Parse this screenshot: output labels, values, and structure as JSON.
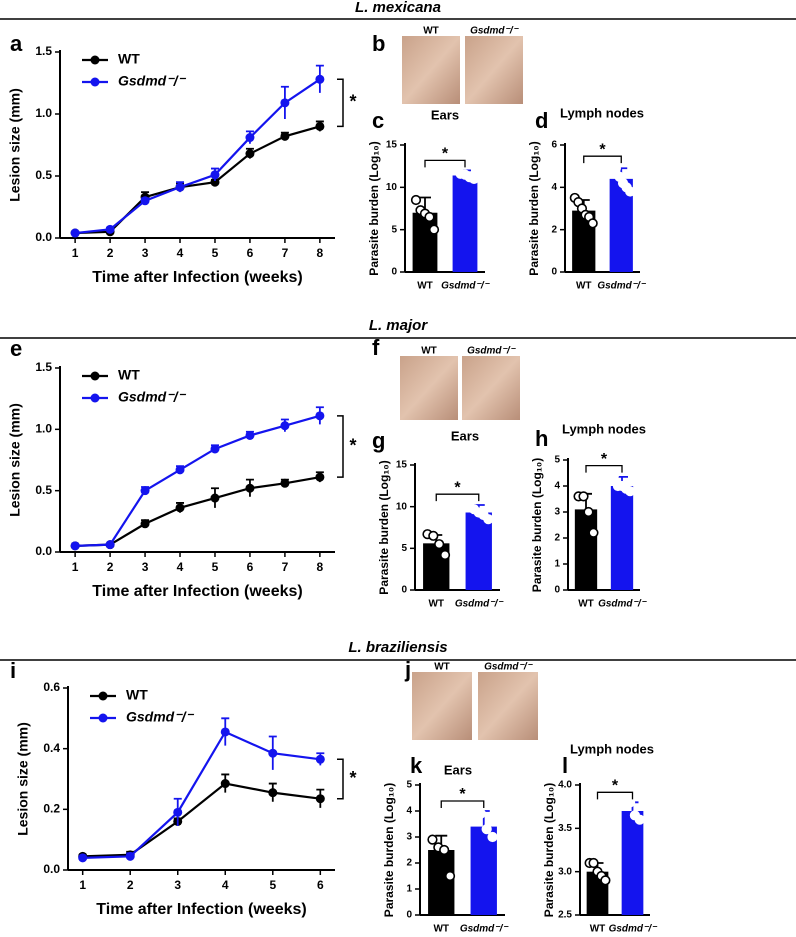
{
  "sections": [
    {
      "title": "L. mexicana",
      "photo": {
        "panel": "b",
        "labels": [
          "WT",
          "Gsdmd⁻/⁻"
        ]
      }
    },
    {
      "title": "L. major",
      "photo": {
        "panel": "f",
        "labels": [
          "WT",
          "Gsdmd⁻/⁻"
        ]
      }
    },
    {
      "title": "L. braziliensis",
      "photo": {
        "panel": "j",
        "labels": [
          "WT",
          "Gsdmd⁻/⁻"
        ]
      }
    }
  ],
  "chart_data": [
    {
      "type": "line",
      "panel": "a",
      "xlabel": "Time after Infection (weeks)",
      "ylabel": "Lesion size (mm)",
      "x": [
        1,
        2,
        3,
        4,
        5,
        6,
        7,
        8
      ],
      "xticks": [
        1,
        2,
        3,
        4,
        5,
        6,
        7,
        8
      ],
      "ylim": [
        0,
        1.5
      ],
      "yticks": [
        {
          "value": 0,
          "label": "0.0"
        },
        0.5,
        {
          "value": 1,
          "label": "1.0"
        },
        1.5
      ],
      "series": [
        {
          "name": "WT",
          "color": "#000000",
          "values": [
            0.04,
            0.05,
            0.33,
            0.41,
            0.45,
            0.68,
            0.82,
            0.9
          ],
          "errors": [
            0.01,
            0.01,
            0.04,
            0.03,
            0.02,
            0.04,
            0.03,
            0.04
          ]
        },
        {
          "name": "Gsdmd⁻/⁻",
          "color": "#1414ee",
          "values": [
            0.04,
            0.07,
            0.3,
            0.41,
            0.51,
            0.81,
            1.09,
            1.28
          ],
          "errors": [
            0.01,
            0.01,
            0.02,
            0.04,
            0.05,
            0.05,
            0.13,
            0.11
          ]
        }
      ],
      "annotation": "*"
    },
    {
      "type": "bar",
      "panel": "c",
      "title": "Ears",
      "ylabel": "Parasite burden (Log₁₀)",
      "categories": [
        "WT",
        "Gsdmd⁻/⁻"
      ],
      "values": [
        7.0,
        11.4
      ],
      "errors": [
        1.8,
        0.6
      ],
      "colors": [
        "#000000",
        "#1414ee"
      ],
      "points": [
        [
          8.5,
          7.3,
          6.9,
          6.5,
          5.0
        ],
        [
          12.0,
          11.6,
          11.5,
          11.2,
          11.0
        ]
      ],
      "ylim": [
        0,
        15
      ],
      "yticks": [
        0,
        5,
        10,
        15
      ],
      "annotation": "*"
    },
    {
      "type": "bar",
      "panel": "d",
      "title": "Lymph nodes",
      "ylabel": "Parasite burden (Log₁₀)",
      "categories": [
        "WT",
        "Gsdmd⁻/⁻"
      ],
      "values": [
        2.9,
        4.4
      ],
      "errors": [
        0.5,
        0.5
      ],
      "colors": [
        "#000000",
        "#1414ee"
      ],
      "points": [
        [
          3.5,
          3.3,
          3.0,
          2.7,
          2.6,
          2.3
        ],
        [
          5.0,
          4.9,
          4.5,
          4.2,
          4.0,
          3.8
        ]
      ],
      "ylim": [
        0,
        6
      ],
      "yticks": [
        0,
        2,
        4,
        6
      ],
      "annotation": "*"
    },
    {
      "type": "line",
      "panel": "e",
      "xlabel": "Time after Infection (weeks)",
      "ylabel": "Lesion size (mm)",
      "x": [
        1,
        2,
        3,
        4,
        5,
        6,
        7,
        8
      ],
      "xticks": [
        1,
        2,
        3,
        4,
        5,
        6,
        7,
        8
      ],
      "ylim": [
        0,
        1.5
      ],
      "yticks": [
        {
          "value": 0,
          "label": "0.0"
        },
        0.5,
        {
          "value": 1,
          "label": "1.0"
        },
        1.5
      ],
      "series": [
        {
          "name": "WT",
          "color": "#000000",
          "values": [
            0.05,
            0.06,
            0.23,
            0.36,
            0.44,
            0.52,
            0.56,
            0.61
          ],
          "errors": [
            0.01,
            0.01,
            0.03,
            0.04,
            0.08,
            0.07,
            0.03,
            0.04
          ]
        },
        {
          "name": "Gsdmd⁻/⁻",
          "color": "#1414ee",
          "values": [
            0.05,
            0.06,
            0.5,
            0.67,
            0.84,
            0.95,
            1.03,
            1.11
          ],
          "errors": [
            0.01,
            0.01,
            0.03,
            0.03,
            0.03,
            0.03,
            0.05,
            0.07
          ]
        }
      ],
      "annotation": "*"
    },
    {
      "type": "bar",
      "panel": "g",
      "title": "Ears",
      "ylabel": "Parasite burden (Log₁₀)",
      "categories": [
        "WT",
        "Gsdmd⁻/⁻"
      ],
      "values": [
        5.6,
        9.3
      ],
      "errors": [
        1.0,
        0.9
      ],
      "colors": [
        "#000000",
        "#1414ee"
      ],
      "points": [
        [
          6.7,
          6.5,
          5.5,
          4.2
        ],
        [
          10.3,
          9.7,
          9.3,
          9.0,
          8.5
        ]
      ],
      "ylim": [
        0,
        15
      ],
      "yticks": [
        0,
        5,
        10,
        15
      ],
      "annotation": "*"
    },
    {
      "type": "bar",
      "panel": "h",
      "title": "Lymph nodes",
      "ylabel": "Parasite burden (Log₁₀)",
      "categories": [
        "WT",
        "Gsdmd⁻/⁻"
      ],
      "values": [
        3.1,
        4.0
      ],
      "errors": [
        0.6,
        0.35
      ],
      "colors": [
        "#000000",
        "#1414ee"
      ],
      "points": [
        [
          3.6,
          3.6,
          3.0,
          2.2
        ],
        [
          4.4,
          4.0,
          4.0,
          3.9,
          3.8
        ]
      ],
      "ylim": [
        0,
        5
      ],
      "yticks": [
        0,
        1,
        2,
        3,
        4,
        5
      ],
      "annotation": "*"
    },
    {
      "type": "line",
      "panel": "i",
      "xlabel": "Time after Infection (weeks)",
      "ylabel": "Lesion size (mm)",
      "x": [
        1,
        2,
        3,
        4,
        5,
        6
      ],
      "xticks": [
        1,
        2,
        3,
        4,
        5,
        6
      ],
      "ylim": [
        0,
        0.6
      ],
      "yticks": [
        {
          "value": 0,
          "label": "0.0"
        },
        0.2,
        0.4,
        0.6
      ],
      "series": [
        {
          "name": "WT",
          "color": "#000000",
          "values": [
            0.045,
            0.05,
            0.16,
            0.285,
            0.255,
            0.235
          ],
          "errors": [
            0.005,
            0.01,
            0.01,
            0.03,
            0.03,
            0.03
          ]
        },
        {
          "name": "Gsdmd⁻/⁻",
          "color": "#1414ee",
          "values": [
            0.04,
            0.045,
            0.19,
            0.455,
            0.385,
            0.365
          ],
          "errors": [
            0.005,
            0.01,
            0.045,
            0.045,
            0.055,
            0.02
          ]
        }
      ],
      "annotation": "*"
    },
    {
      "type": "bar",
      "panel": "k",
      "title": "Ears",
      "ylabel": "Parasite burden (Log₁₀)",
      "categories": [
        "WT",
        "Gsdmd⁻/⁻"
      ],
      "values": [
        2.5,
        3.4
      ],
      "errors": [
        0.55,
        0.6
      ],
      "colors": [
        "#000000",
        "#1414ee"
      ],
      "points": [
        [
          2.9,
          2.6,
          2.5,
          1.5
        ],
        [
          3.9,
          3.9,
          3.3,
          3.0
        ]
      ],
      "ylim": [
        0,
        5
      ],
      "yticks": [
        0,
        1,
        2,
        3,
        4,
        5
      ],
      "annotation": "*"
    },
    {
      "type": "bar",
      "panel": "l",
      "title": "Lymph nodes",
      "ylabel": "Parasite burden (Log₁₀)",
      "categories": [
        "WT",
        "Gsdmd⁻/⁻"
      ],
      "values": [
        3.0,
        3.7
      ],
      "errors": [
        0.1,
        0.1
      ],
      "colors": [
        "#000000",
        "#1414ee"
      ],
      "points": [
        [
          3.1,
          3.1,
          3.0,
          2.95,
          2.9
        ],
        [
          3.8,
          3.8,
          3.65,
          3.6
        ]
      ],
      "ylim": [
        2.5,
        4.0
      ],
      "yticks": [
        2.5,
        {
          "value": 3,
          "label": "3.0"
        },
        3.5,
        {
          "value": 4,
          "label": "4.0"
        }
      ],
      "annotation": "*"
    }
  ]
}
